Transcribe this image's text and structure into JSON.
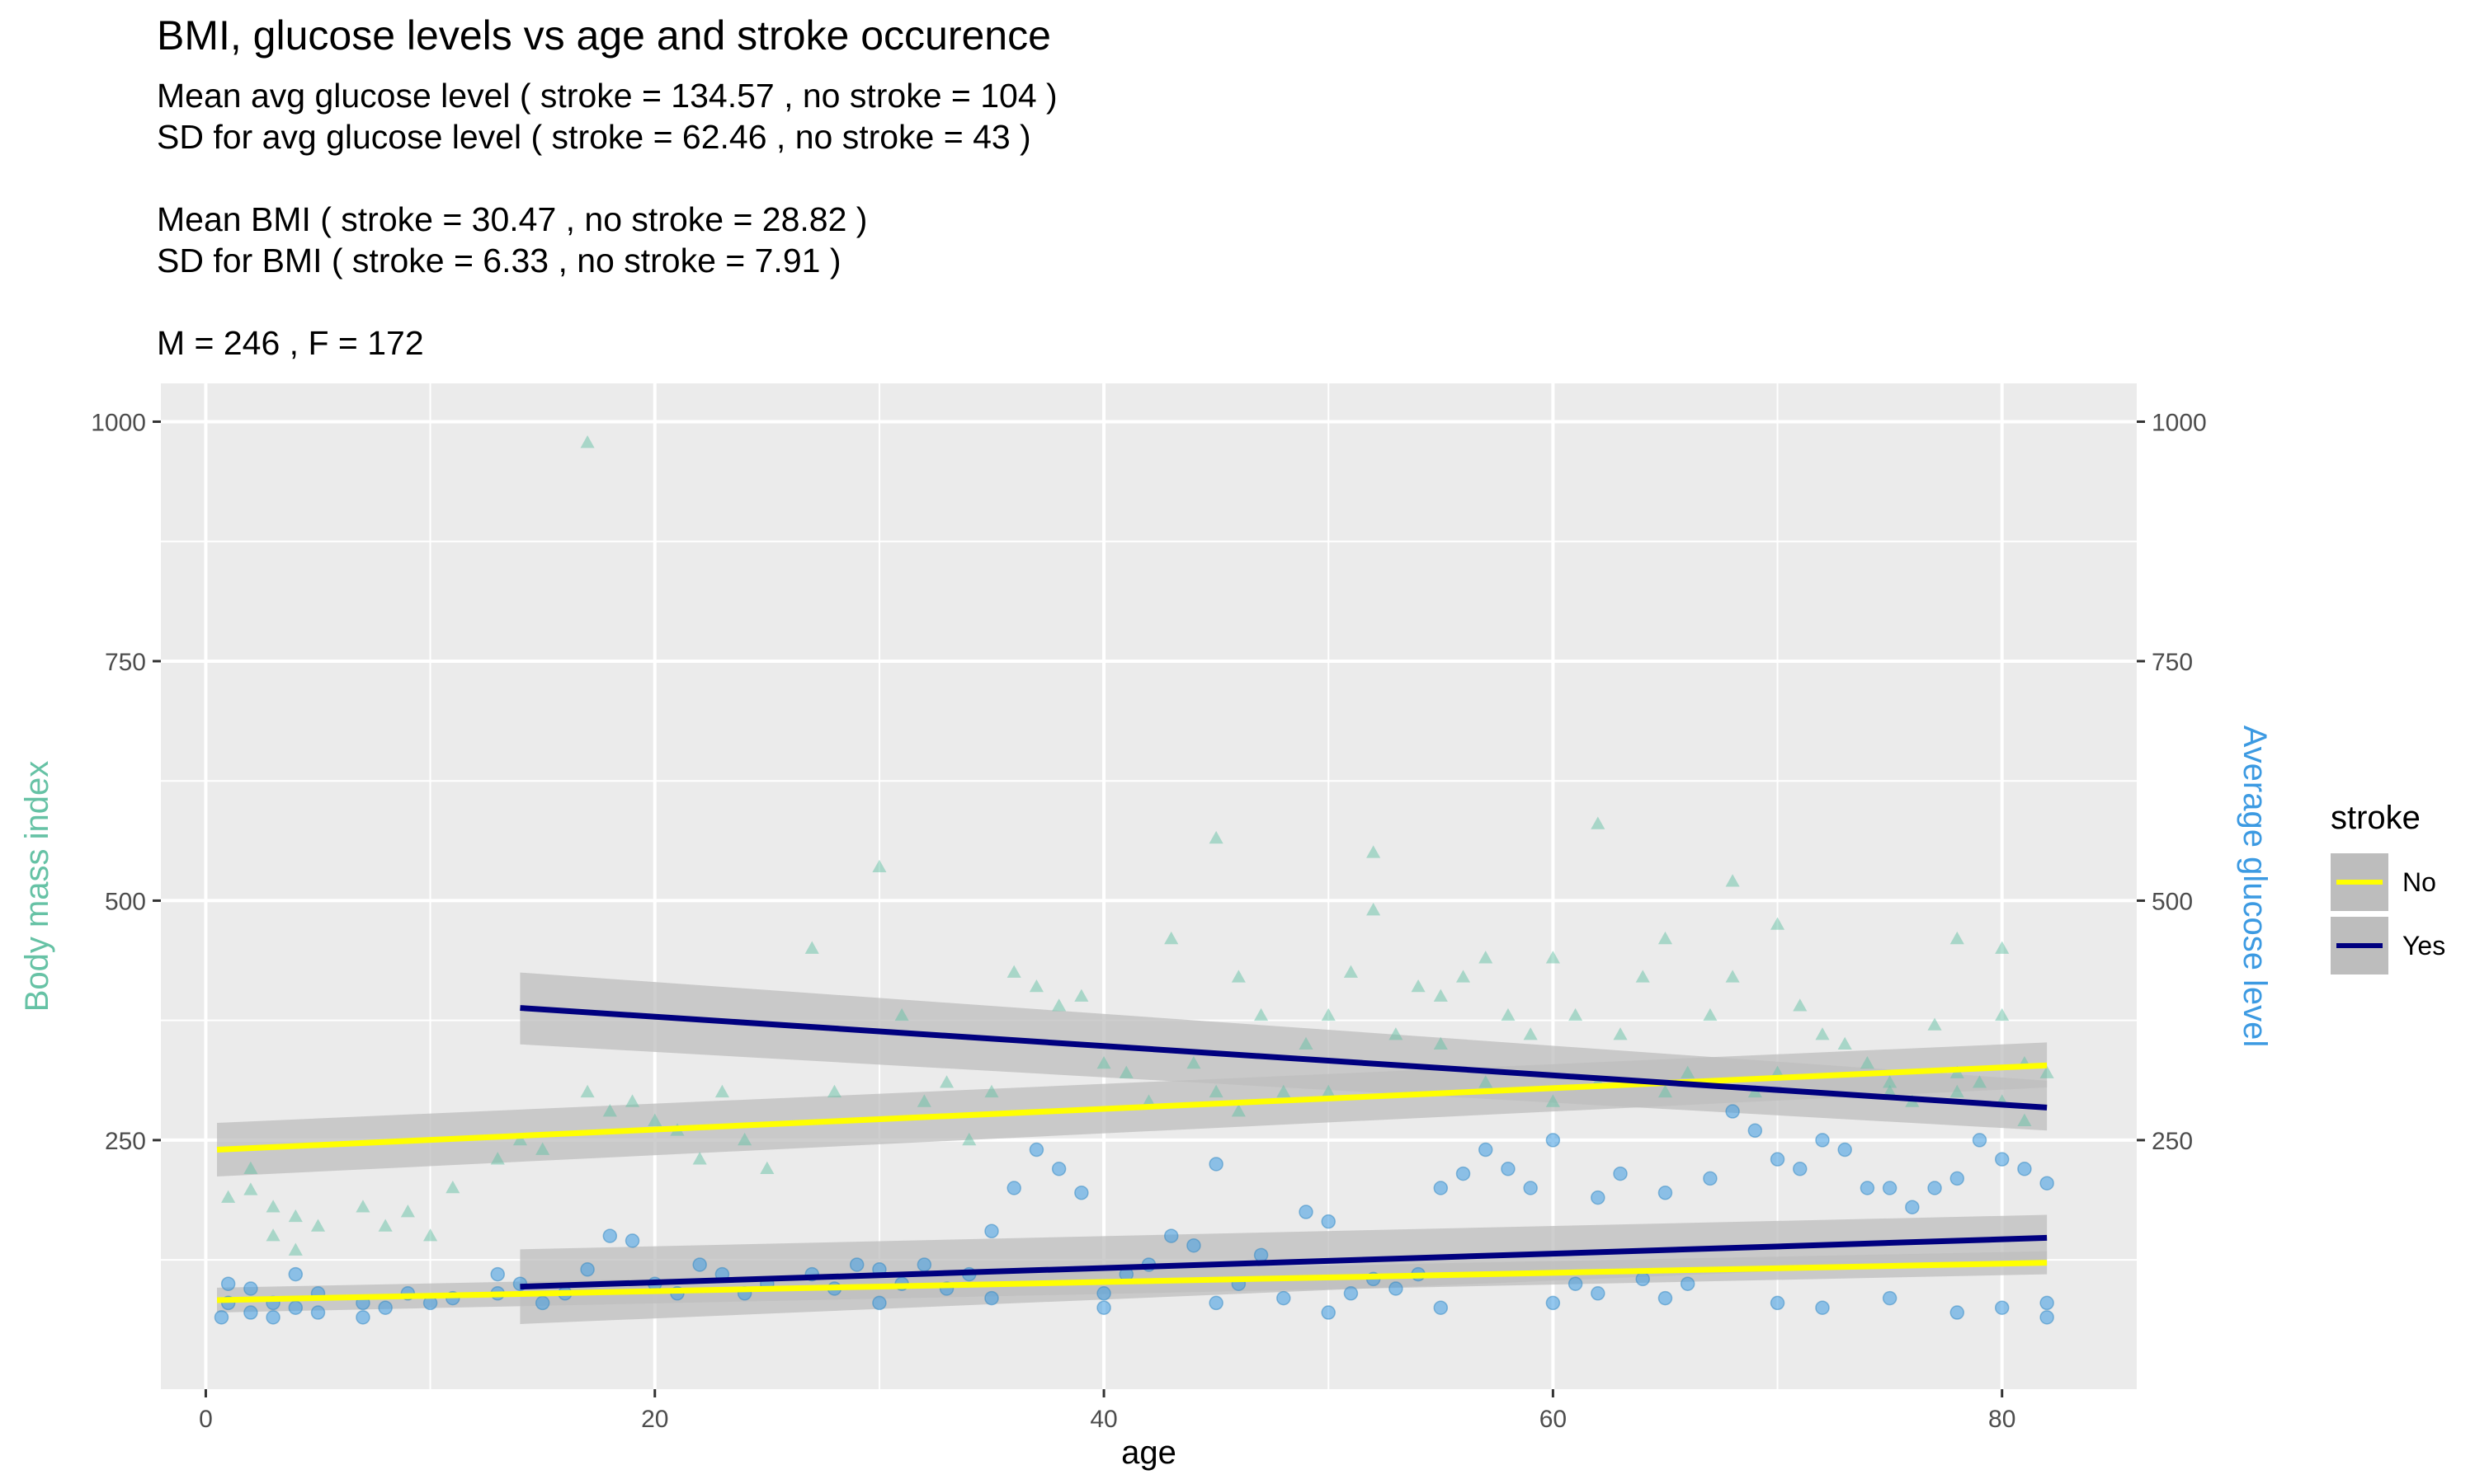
{
  "chart_data": {
    "type": "scatter",
    "title": "BMI, glucose levels vs age and stroke occurence",
    "subtitle_lines": [
      "Mean avg glucose level ( stroke =  134.57 , no stroke =  104 )",
      "SD for avg glucose level ( stroke =  62.46 , no stroke =  43 )",
      "",
      "Mean BMI ( stroke =  30.47 , no stroke =  28.82 )",
      "SD for BMI ( stroke =  6.33 , no stroke =  7.91 )",
      "",
      "M =  246 , F =  172"
    ],
    "xlabel": "age",
    "ylabel_left": "Body mass index",
    "ylabel_right": "Average glucose level",
    "xlim": [
      -2,
      86
    ],
    "ylim": [
      -10,
      1040
    ],
    "x_ticks": [
      0,
      20,
      40,
      60,
      80
    ],
    "y_ticks": [
      250,
      500,
      750,
      1000
    ],
    "grid": true,
    "legend": {
      "title": "stroke",
      "placement": "right",
      "entries": [
        {
          "label": "No",
          "color": "#FFFF00"
        },
        {
          "label": "Yes",
          "color": "#00007F"
        }
      ]
    },
    "colors": {
      "panel_bg": "#EBEBEB",
      "grid": "#FFFFFF",
      "bmi_points": "#66C2A5",
      "glucose_points": "#3C9AE2",
      "ribbon": "#BDBDBD",
      "left_axis_title": "#66C2A5",
      "right_axis_title": "#3C9AE2"
    },
    "bmi_points": [
      [
        1,
        190
      ],
      [
        2,
        220
      ],
      [
        2,
        198
      ],
      [
        3,
        150
      ],
      [
        3,
        180
      ],
      [
        4,
        170
      ],
      [
        4,
        135
      ],
      [
        5,
        160
      ],
      [
        7,
        180
      ],
      [
        8,
        160
      ],
      [
        9,
        175
      ],
      [
        10,
        150
      ],
      [
        11,
        200
      ],
      [
        13,
        230
      ],
      [
        14,
        250
      ],
      [
        15,
        240
      ],
      [
        17,
        978
      ],
      [
        17,
        300
      ],
      [
        18,
        280
      ],
      [
        19,
        290
      ],
      [
        20,
        270
      ],
      [
        21,
        260
      ],
      [
        22,
        230
      ],
      [
        23,
        300
      ],
      [
        24,
        250
      ],
      [
        25,
        220
      ],
      [
        27,
        450
      ],
      [
        28,
        300
      ],
      [
        30,
        535
      ],
      [
        31,
        380
      ],
      [
        32,
        290
      ],
      [
        33,
        310
      ],
      [
        34,
        250
      ],
      [
        35,
        300
      ],
      [
        36,
        425
      ],
      [
        37,
        410
      ],
      [
        38,
        390
      ],
      [
        39,
        400
      ],
      [
        40,
        330
      ],
      [
        41,
        320
      ],
      [
        42,
        290
      ],
      [
        43,
        460
      ],
      [
        44,
        330
      ],
      [
        45,
        565
      ],
      [
        46,
        420
      ],
      [
        47,
        380
      ],
      [
        48,
        300
      ],
      [
        49,
        350
      ],
      [
        50,
        380
      ],
      [
        51,
        425
      ],
      [
        52,
        550
      ],
      [
        52,
        490
      ],
      [
        53,
        360
      ],
      [
        54,
        410
      ],
      [
        55,
        400
      ],
      [
        56,
        420
      ],
      [
        57,
        440
      ],
      [
        58,
        380
      ],
      [
        59,
        360
      ],
      [
        60,
        440
      ],
      [
        61,
        380
      ],
      [
        62,
        580
      ],
      [
        63,
        360
      ],
      [
        64,
        420
      ],
      [
        65,
        460
      ],
      [
        66,
        320
      ],
      [
        67,
        380
      ],
      [
        68,
        520
      ],
      [
        68,
        420
      ],
      [
        69,
        300
      ],
      [
        70,
        475
      ],
      [
        71,
        390
      ],
      [
        72,
        360
      ],
      [
        73,
        350
      ],
      [
        74,
        330
      ],
      [
        75,
        300
      ],
      [
        76,
        290
      ],
      [
        77,
        370
      ],
      [
        78,
        460
      ],
      [
        78,
        320
      ],
      [
        79,
        310
      ],
      [
        80,
        450
      ],
      [
        80,
        380
      ],
      [
        81,
        330
      ],
      [
        82,
        320
      ],
      [
        45,
        300
      ],
      [
        46,
        280
      ],
      [
        50,
        300
      ],
      [
        55,
        350
      ],
      [
        57,
        310
      ],
      [
        60,
        290
      ],
      [
        62,
        310
      ],
      [
        65,
        300
      ],
      [
        70,
        320
      ],
      [
        75,
        310
      ],
      [
        78,
        300
      ],
      [
        80,
        290
      ],
      [
        81,
        270
      ]
    ],
    "glucose_points": [
      [
        0.7,
        65
      ],
      [
        1,
        80
      ],
      [
        1,
        100
      ],
      [
        2,
        95
      ],
      [
        2,
        70
      ],
      [
        3,
        80
      ],
      [
        3,
        65
      ],
      [
        4,
        110
      ],
      [
        4,
        75
      ],
      [
        5,
        90
      ],
      [
        5,
        70
      ],
      [
        7,
        80
      ],
      [
        7,
        65
      ],
      [
        8,
        75
      ],
      [
        9,
        90
      ],
      [
        10,
        80
      ],
      [
        11,
        85
      ],
      [
        13,
        110
      ],
      [
        13,
        90
      ],
      [
        14,
        100
      ],
      [
        15,
        80
      ],
      [
        16,
        90
      ],
      [
        17,
        115
      ],
      [
        18,
        150
      ],
      [
        19,
        145
      ],
      [
        20,
        100
      ],
      [
        21,
        90
      ],
      [
        22,
        120
      ],
      [
        23,
        110
      ],
      [
        24,
        90
      ],
      [
        25,
        100
      ],
      [
        27,
        110
      ],
      [
        28,
        95
      ],
      [
        29,
        120
      ],
      [
        30,
        115
      ],
      [
        31,
        100
      ],
      [
        32,
        120
      ],
      [
        33,
        95
      ],
      [
        34,
        110
      ],
      [
        35,
        155
      ],
      [
        36,
        200
      ],
      [
        37,
        240
      ],
      [
        38,
        220
      ],
      [
        39,
        195
      ],
      [
        40,
        90
      ],
      [
        41,
        110
      ],
      [
        42,
        120
      ],
      [
        43,
        150
      ],
      [
        44,
        140
      ],
      [
        45,
        225
      ],
      [
        46,
        100
      ],
      [
        47,
        130
      ],
      [
        48,
        85
      ],
      [
        49,
        175
      ],
      [
        50,
        165
      ],
      [
        51,
        90
      ],
      [
        52,
        105
      ],
      [
        53,
        95
      ],
      [
        54,
        110
      ],
      [
        55,
        200
      ],
      [
        56,
        215
      ],
      [
        57,
        240
      ],
      [
        58,
        220
      ],
      [
        59,
        200
      ],
      [
        60,
        250
      ],
      [
        61,
        100
      ],
      [
        62,
        190
      ],
      [
        63,
        215
      ],
      [
        64,
        105
      ],
      [
        65,
        195
      ],
      [
        66,
        100
      ],
      [
        67,
        210
      ],
      [
        68,
        280
      ],
      [
        69,
        260
      ],
      [
        70,
        230
      ],
      [
        71,
        220
      ],
      [
        72,
        250
      ],
      [
        73,
        240
      ],
      [
        74,
        200
      ],
      [
        75,
        200
      ],
      [
        76,
        180
      ],
      [
        77,
        200
      ],
      [
        78,
        210
      ],
      [
        79,
        250
      ],
      [
        80,
        230
      ],
      [
        81,
        220
      ],
      [
        82,
        205
      ],
      [
        30,
        80
      ],
      [
        35,
        85
      ],
      [
        40,
        75
      ],
      [
        45,
        80
      ],
      [
        50,
        70
      ],
      [
        55,
        75
      ],
      [
        60,
        80
      ],
      [
        62,
        90
      ],
      [
        65,
        85
      ],
      [
        70,
        80
      ],
      [
        72,
        75
      ],
      [
        75,
        85
      ],
      [
        78,
        70
      ],
      [
        80,
        75
      ],
      [
        82,
        65
      ],
      [
        82,
        80
      ]
    ],
    "series": [
      {
        "name": "No",
        "measure": "bmi",
        "x": [
          0.5,
          82
        ],
        "y": [
          240,
          328
        ],
        "ribbon": [
          [
            0.5,
            212,
            268
          ],
          [
            82,
            305,
            352
          ]
        ]
      },
      {
        "name": "Yes",
        "measure": "bmi",
        "x": [
          14,
          82
        ],
        "y": [
          388,
          284
        ],
        "ribbon": [
          [
            14,
            350,
            425
          ],
          [
            82,
            260,
            312
          ]
        ]
      },
      {
        "name": "No",
        "measure": "glucose",
        "x": [
          0.5,
          82
        ],
        "y": [
          83,
          122
        ],
        "ribbon": [
          [
            0.5,
            70,
            96
          ],
          [
            82,
            110,
            134
          ]
        ]
      },
      {
        "name": "Yes",
        "measure": "glucose",
        "x": [
          14,
          82
        ],
        "y": [
          97,
          148
        ],
        "ribbon": [
          [
            14,
            58,
            136
          ],
          [
            82,
            125,
            172
          ]
        ]
      }
    ]
  }
}
